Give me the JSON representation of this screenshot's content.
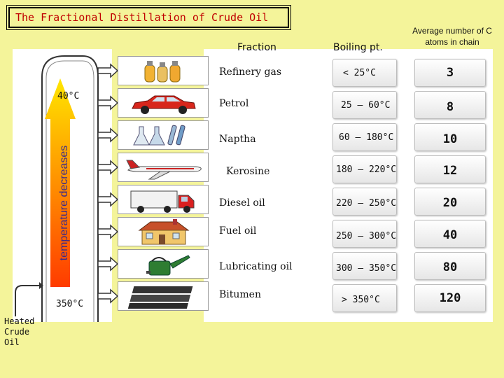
{
  "title": "The Fractional Distillation of Crude Oil",
  "headers": {
    "fraction": "Fraction",
    "boiling_point": "Boiling pt.",
    "carbon_atoms": "Average number of C atoms in chain"
  },
  "column": {
    "top_temp": "40°C",
    "bottom_temp": "350°C",
    "arrow_label": "temperature decreases",
    "input_label": [
      "Heated",
      "Crude",
      "Oil"
    ]
  },
  "rows": [
    {
      "fraction": "Refinery gas",
      "boiling": "< 25°C",
      "carbon": "3",
      "icon": "gas-cylinders-icon"
    },
    {
      "fraction": "Petrol",
      "boiling": "25 – 60°C",
      "carbon": "8",
      "icon": "car-icon"
    },
    {
      "fraction": "Naptha",
      "boiling": "60 – 180°C",
      "carbon": "10",
      "icon": "chemical-flasks-icon"
    },
    {
      "fraction": "Kerosine",
      "boiling": "180 – 220°C",
      "carbon": "12",
      "icon": "airplane-icon"
    },
    {
      "fraction": "Diesel oil",
      "boiling": "220 – 250°C",
      "carbon": "20",
      "icon": "truck-icon"
    },
    {
      "fraction": "Fuel oil",
      "boiling": "250 – 300°C",
      "carbon": "40",
      "icon": "house-icon"
    },
    {
      "fraction": "Lubricating oil",
      "boiling": "300 – 350°C",
      "carbon": "80",
      "icon": "oil-can-icon"
    },
    {
      "fraction": "Bitumen",
      "boiling": "> 350°C",
      "carbon": "120",
      "icon": "road-tar-icon"
    }
  ],
  "colors": {
    "background": "#f4f49a",
    "title_text": "#c00000",
    "arrow_top": "#ffe600",
    "arrow_bottom": "#ff3b00"
  }
}
